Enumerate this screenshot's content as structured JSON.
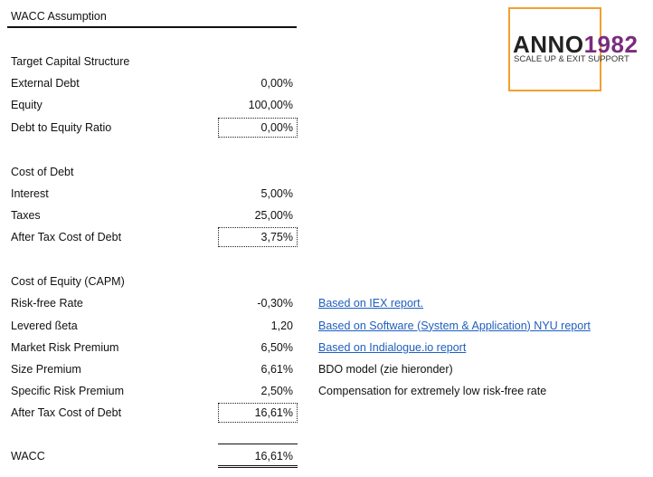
{
  "header": {
    "title": "WACC Assumption"
  },
  "logo": {
    "name_part1": "ANNO",
    "name_part2": "1982",
    "tagline": "SCALE UP & EXIT SUPPORT"
  },
  "sections": [
    {
      "title": "Target Capital Structure",
      "rows": [
        {
          "label": "External Debt",
          "value": "0,00%"
        },
        {
          "label": "Equity",
          "value": "100,00%"
        },
        {
          "label": "Debt to Equity Ratio",
          "value": "0,00%"
        }
      ]
    },
    {
      "title": "Cost of Debt",
      "rows": [
        {
          "label": "Interest",
          "value": "5,00%"
        },
        {
          "label": "Taxes",
          "value": "25,00%"
        },
        {
          "label": "After Tax Cost of Debt",
          "value": "3,75%"
        }
      ]
    },
    {
      "title": "Cost of Equity (CAPM)",
      "rows": [
        {
          "label": "Risk-free Rate",
          "value": "-0,30%",
          "link": "Based on IEX report."
        },
        {
          "label": "Levered ßeta",
          "value": "1,20",
          "link": "Based on Software (System & Application) NYU report"
        },
        {
          "label": "Market Risk Premium",
          "value": "6,50%",
          "link": "Based on Indialogue.io report"
        },
        {
          "label": "Size Premium",
          "value": "6,61%",
          "note": "BDO model (zie hieronder)"
        },
        {
          "label": "Specific Risk Premium",
          "value": "2,50%",
          "note": "Compensation for extremely low risk-free rate"
        },
        {
          "label": "After Tax Cost of Debt",
          "value": "16,61%"
        }
      ]
    }
  ],
  "wacc": {
    "label": "WACC",
    "value": "16,61%"
  }
}
